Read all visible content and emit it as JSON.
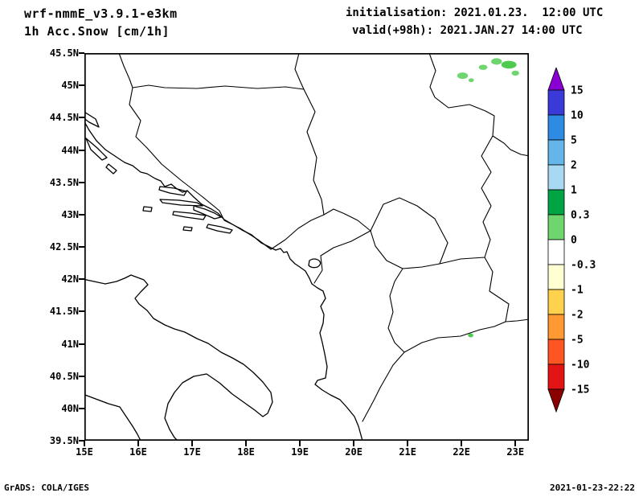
{
  "header": {
    "model": "wrf-nmmE_v3.9.1-e3km",
    "variable": "1h Acc.Snow [cm/1h]",
    "init_label": "initialisation: 2021.01.23.  12:00 UTC",
    "valid_label": "valid(+98h): 2021.JAN.27 14:00 UTC"
  },
  "footer": {
    "credit": "GrADS: COLA/IGES",
    "timestamp": "2021-01-23-22:22"
  },
  "chart_data": {
    "type": "heatmap",
    "title": "wrf-nmmE_v3.9.1-e3km 1h Acc.Snow [cm/1h]",
    "units": "cm/1h",
    "initialisation": "2021.01.23. 12:00 UTC",
    "valid": "+98h: 2021.JAN.27 14:00 UTC",
    "x_ticks": [
      "15E",
      "16E",
      "17E",
      "18E",
      "19E",
      "20E",
      "21E",
      "22E",
      "23E"
    ],
    "y_ticks": [
      "45.5N",
      "45N",
      "44.5N",
      "44N",
      "43.5N",
      "43N",
      "42.5N",
      "42N",
      "41.5N",
      "41N",
      "40.5N",
      "40N",
      "39.5N"
    ],
    "lon_range": [
      15,
      23.25
    ],
    "lat_range": [
      39.5,
      45.5
    ],
    "grid": false,
    "legend_position": "right",
    "colorbar": {
      "levels": [
        "15",
        "10",
        "5",
        "2",
        "1",
        "0.3",
        "0",
        "-0.3",
        "-1",
        "-2",
        "-5",
        "-10",
        "-15"
      ],
      "band_colors": [
        "#8a00d4",
        "#3a3ad8",
        "#2e8be4",
        "#63b5ea",
        "#a9d9f2",
        "#00a443",
        "#6fd66f",
        "#ffffff",
        "#ffffd2",
        "#ffd24d",
        "#ff9a33",
        "#ff5522",
        "#e21414",
        "#8b0000"
      ]
    },
    "snow_patches": [
      {
        "lon": 22.02,
        "lat": 45.15,
        "rlon": 0.1,
        "rlat": 0.05,
        "value": 0.3,
        "color": "#6fd66f"
      },
      {
        "lon": 22.4,
        "lat": 45.28,
        "rlon": 0.08,
        "rlat": 0.04,
        "value": 0.3,
        "color": "#6fd66f"
      },
      {
        "lon": 22.65,
        "lat": 45.37,
        "rlon": 0.1,
        "rlat": 0.05,
        "value": 0.3,
        "color": "#6fd66f"
      },
      {
        "lon": 22.88,
        "lat": 45.32,
        "rlon": 0.14,
        "rlat": 0.06,
        "value": 0.5,
        "color": "#4fcc4f"
      },
      {
        "lon": 23.0,
        "lat": 45.19,
        "rlon": 0.07,
        "rlat": 0.04,
        "value": 0.3,
        "color": "#6fd66f"
      },
      {
        "lon": 22.18,
        "lat": 45.08,
        "rlon": 0.05,
        "rlat": 0.03,
        "value": 0.3,
        "color": "#6fd66f"
      },
      {
        "lon": 22.17,
        "lat": 41.13,
        "rlon": 0.05,
        "rlat": 0.03,
        "value": 0.3,
        "color": "#4fcc4f"
      }
    ]
  }
}
